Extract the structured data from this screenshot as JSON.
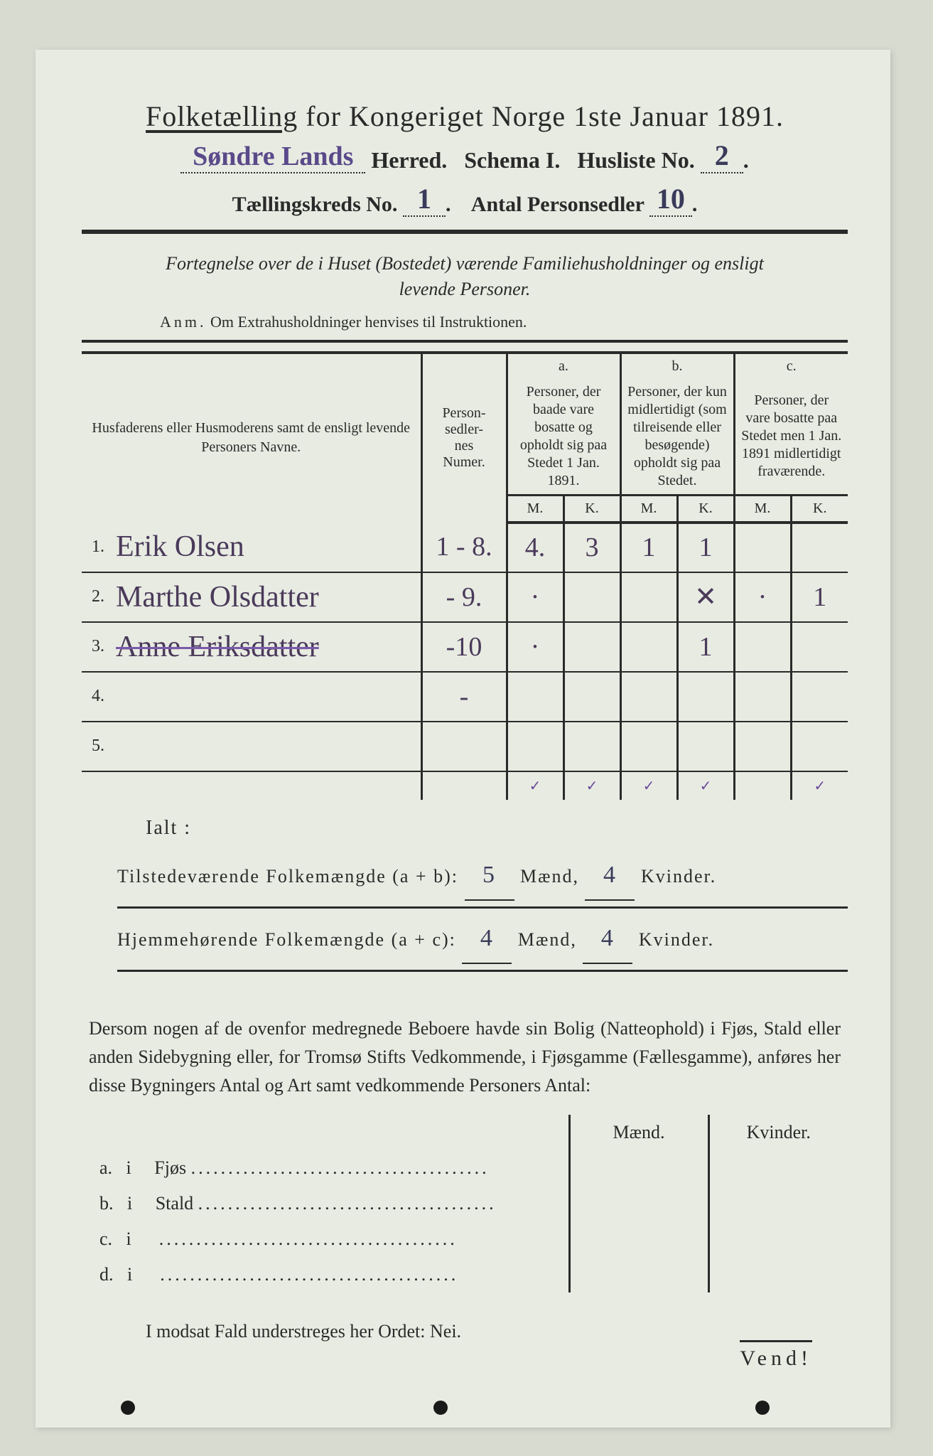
{
  "title": {
    "main_a": "Folketælling",
    "main_b": "for Kongeriget Norge 1ste Januar 1891."
  },
  "header": {
    "herred_hw": "Søndre Lands",
    "herred_label": "Herred.",
    "schema_label": "Schema I.",
    "husliste_label": "Husliste No.",
    "husliste_no": "2",
    "kreds_label": "Tællingskreds No.",
    "kreds_no": "1",
    "personsedler_label": "Antal Personsedler",
    "personsedler_no": "10"
  },
  "intro": {
    "line1": "Fortegnelse over de i Huset (Bostedet) værende Familiehusholdninger og ensligt",
    "line2": "levende Personer.",
    "anm_label": "Anm.",
    "anm_text": "Om Extrahusholdninger henvises til Instruktionen."
  },
  "table": {
    "col_names": "Husfaderens eller Husmoderens samt de ensligt levende Personers Navne.",
    "col_num": "Person-\nsedler-\nnes\nNumer.",
    "abc": {
      "a": "a.",
      "b": "b.",
      "c": "c."
    },
    "desc_a": "Personer, der baade vare bosatte og opholdt sig paa Stedet 1 Jan. 1891.",
    "desc_b": "Personer, der kun midlertidigt (som tilreisende eller besøgende) opholdt sig paa Stedet.",
    "desc_c": "Personer, der vare bosatte paa Stedet men 1 Jan. 1891 midlertidigt fraværende.",
    "M": "M.",
    "K": "K.",
    "rows": [
      {
        "n": "1.",
        "name": "Erik Olsen",
        "num": "1 - 8.",
        "aM": "4.",
        "aK": "3",
        "bM": "1",
        "bK": "1",
        "cM": "",
        "cK": "",
        "struck": false
      },
      {
        "n": "2.",
        "name": "Marthe Olsdatter",
        "num": "- 9.",
        "aM": "·",
        "aK": "",
        "bM": "",
        "bK": "✕",
        "cM": "·",
        "cK": "1",
        "struck": false
      },
      {
        "n": "3.",
        "name": "Anne Eriksdatter",
        "num": "-10",
        "aM": "·",
        "aK": "",
        "bM": "",
        "bK": "1",
        "cM": "",
        "cK": "",
        "struck": true
      },
      {
        "n": "4.",
        "name": "",
        "num": "-",
        "aM": "",
        "aK": "",
        "bM": "",
        "bK": "",
        "cM": "",
        "cK": "",
        "struck": false
      },
      {
        "n": "5.",
        "name": "",
        "num": "",
        "aM": "",
        "aK": "",
        "bM": "",
        "bK": "",
        "cM": "",
        "cK": "",
        "struck": false
      }
    ],
    "checks": {
      "aM": "✓",
      "aK": "✓",
      "bM": "✓",
      "bK": "✓",
      "cM": "",
      "cK": "✓"
    }
  },
  "ialt": "Ialt :",
  "totals": {
    "line1_label": "Tilstedeværende Folkemængde (a + b):",
    "line1_m": "5",
    "line1_k": "4",
    "line2_label": "Hjemmehørende Folkemængde (a + c):",
    "line2_m": "4",
    "line2_k": "4",
    "maend": "Mænd,",
    "kvinder": "Kvinder."
  },
  "para": "Dersom nogen af de ovenfor medregnede Beboere havde sin Bolig (Natteophold) i Fjøs, Stald eller anden Sidebygning eller, for Tromsø Stifts Vedkommende, i Fjøsgamme (Fællesgamme), anføres her disse Bygningers Antal og Art samt vedkommende Personers Antal:",
  "side": {
    "maend": "Mænd.",
    "kvinder": "Kvinder.",
    "rows": [
      {
        "l": "a.",
        "i": "i",
        "t": "Fjøs"
      },
      {
        "l": "b.",
        "i": "i",
        "t": "Stald"
      },
      {
        "l": "c.",
        "i": "i",
        "t": ""
      },
      {
        "l": "d.",
        "i": "i",
        "t": ""
      }
    ]
  },
  "nei": "I modsat Fald understreges her Ordet: Nei.",
  "vend": "Vend!"
}
